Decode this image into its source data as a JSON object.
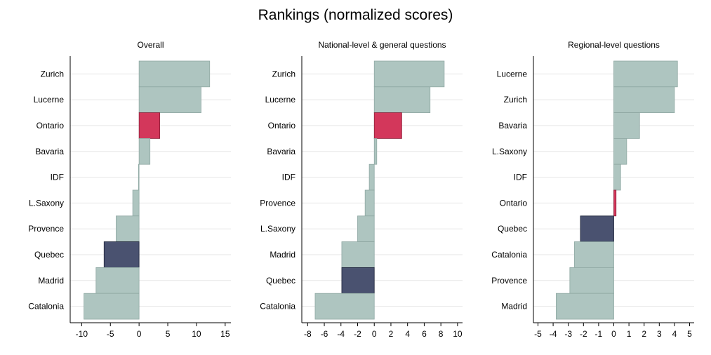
{
  "title": "Rankings (normalized scores)",
  "colors": {
    "default_bar": "#aec5c0",
    "default_edge": "#8fa8a3",
    "ontario_bar": "#d3375b",
    "ontario_edge": "#8a1f38",
    "quebec_bar": "#4a5270",
    "quebec_edge": "#1c2238",
    "grid": "#e6e6e6",
    "axis": "#000000"
  },
  "chart_data": [
    {
      "type": "bar",
      "orientation": "horizontal",
      "title": "Overall",
      "categories": [
        "Zurich",
        "Lucerne",
        "Ontario",
        "Bavaria",
        "IDF",
        "L.Saxony",
        "Provence",
        "Quebec",
        "Madrid",
        "Catalonia"
      ],
      "values": [
        12.3,
        10.8,
        3.6,
        1.9,
        -0.1,
        -1.1,
        -4.0,
        -6.1,
        -7.5,
        -9.6
      ],
      "xticks": [
        -10,
        -5,
        0,
        5,
        10,
        15
      ],
      "xlim": [
        -12,
        16
      ],
      "highlight": {
        "Ontario": "ontario",
        "Quebec": "quebec"
      },
      "grid": true
    },
    {
      "type": "bar",
      "orientation": "horizontal",
      "title": "National-level & general questions",
      "categories": [
        "Zurich",
        "Lucerne",
        "Ontario",
        "Bavaria",
        "IDF",
        "Provence",
        "L.Saxony",
        "Madrid",
        "Quebec",
        "Catalonia"
      ],
      "values": [
        8.4,
        6.7,
        3.3,
        0.3,
        -0.6,
        -1.1,
        -2.0,
        -3.9,
        -3.9,
        -7.1
      ],
      "xticks": [
        -8,
        -6,
        -4,
        -2,
        0,
        2,
        4,
        6,
        8,
        10
      ],
      "xlim": [
        -8.7,
        10.6
      ],
      "highlight": {
        "Ontario": "ontario",
        "Quebec": "quebec"
      },
      "grid": true
    },
    {
      "type": "bar",
      "orientation": "horizontal",
      "title": "Regional-level questions",
      "categories": [
        "Lucerne",
        "Zurich",
        "Bavaria",
        "L.Saxony",
        "IDF",
        "Ontario",
        "Quebec",
        "Catalonia",
        "Provence",
        "Madrid"
      ],
      "values": [
        4.2,
        4.0,
        1.7,
        0.85,
        0.45,
        0.15,
        -2.2,
        -2.6,
        -2.9,
        -3.8
      ],
      "xticks": [
        -5,
        -4,
        -3,
        -2,
        -1,
        0,
        1,
        2,
        3,
        4,
        5
      ],
      "xlim": [
        -5.3,
        5.3
      ],
      "highlight": {
        "Ontario": "ontario",
        "Quebec": "quebec"
      },
      "grid": true
    }
  ]
}
